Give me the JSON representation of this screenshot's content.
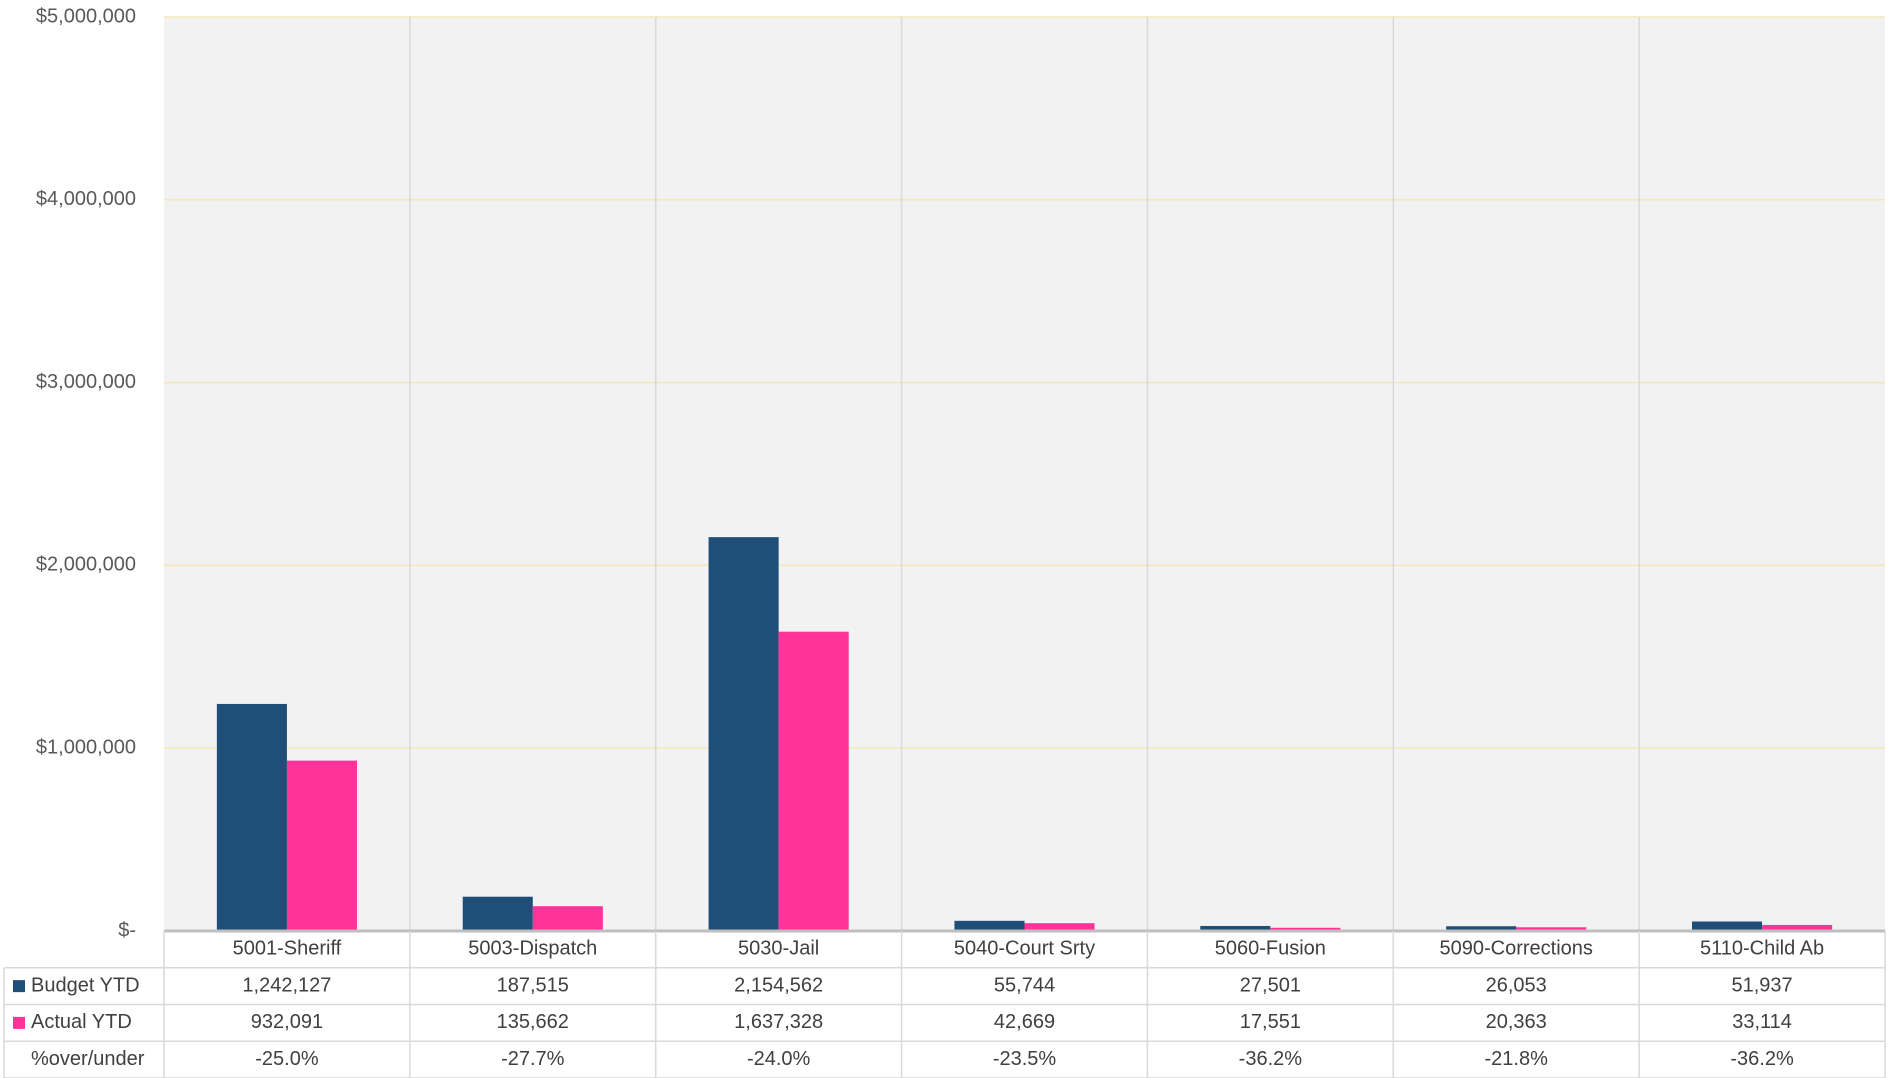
{
  "chart_data": {
    "type": "bar",
    "categories": [
      "5001-Sheriff",
      "5003-Dispatch",
      "5030-Jail",
      "5040-Court Srty",
      "5060-Fusion",
      "5090-Corrections",
      "5110-Child Ab"
    ],
    "series": [
      {
        "name": "Budget YTD",
        "color": "#1f4e79",
        "values": [
          1242127,
          187515,
          2154562,
          55744,
          27501,
          26053,
          51937
        ],
        "value_labels": [
          "1,242,127",
          "187,515",
          "2,154,562",
          "55,744",
          "27,501",
          "26,053",
          "51,937"
        ]
      },
      {
        "name": "Actual YTD",
        "color": "#ff3399",
        "values": [
          932091,
          135662,
          1637328,
          42669,
          17551,
          20363,
          33114
        ],
        "value_labels": [
          "932,091",
          "135,662",
          "1,637,328",
          "42,669",
          "17,551",
          "20,363",
          "33,114"
        ]
      }
    ],
    "table_rows": [
      {
        "name": "%over/under",
        "values": [
          -25.0,
          -27.7,
          -24.0,
          -23.5,
          -36.2,
          -21.8,
          -36.2
        ],
        "value_labels": [
          "-25.0%",
          "-27.7%",
          "-24.0%",
          "-23.5%",
          "-36.2%",
          "-21.8%",
          "-36.2%"
        ]
      }
    ],
    "ylim": [
      0,
      5000000
    ],
    "yticks": [
      {
        "value": 0,
        "label": "$-"
      },
      {
        "value": 1000000,
        "label": "$1,000,000"
      },
      {
        "value": 2000000,
        "label": "$2,000,000"
      },
      {
        "value": 3000000,
        "label": "$3,000,000"
      },
      {
        "value": 4000000,
        "label": "$4,000,000"
      },
      {
        "value": 5000000,
        "label": "$5,000,000"
      }
    ],
    "grid": true
  }
}
